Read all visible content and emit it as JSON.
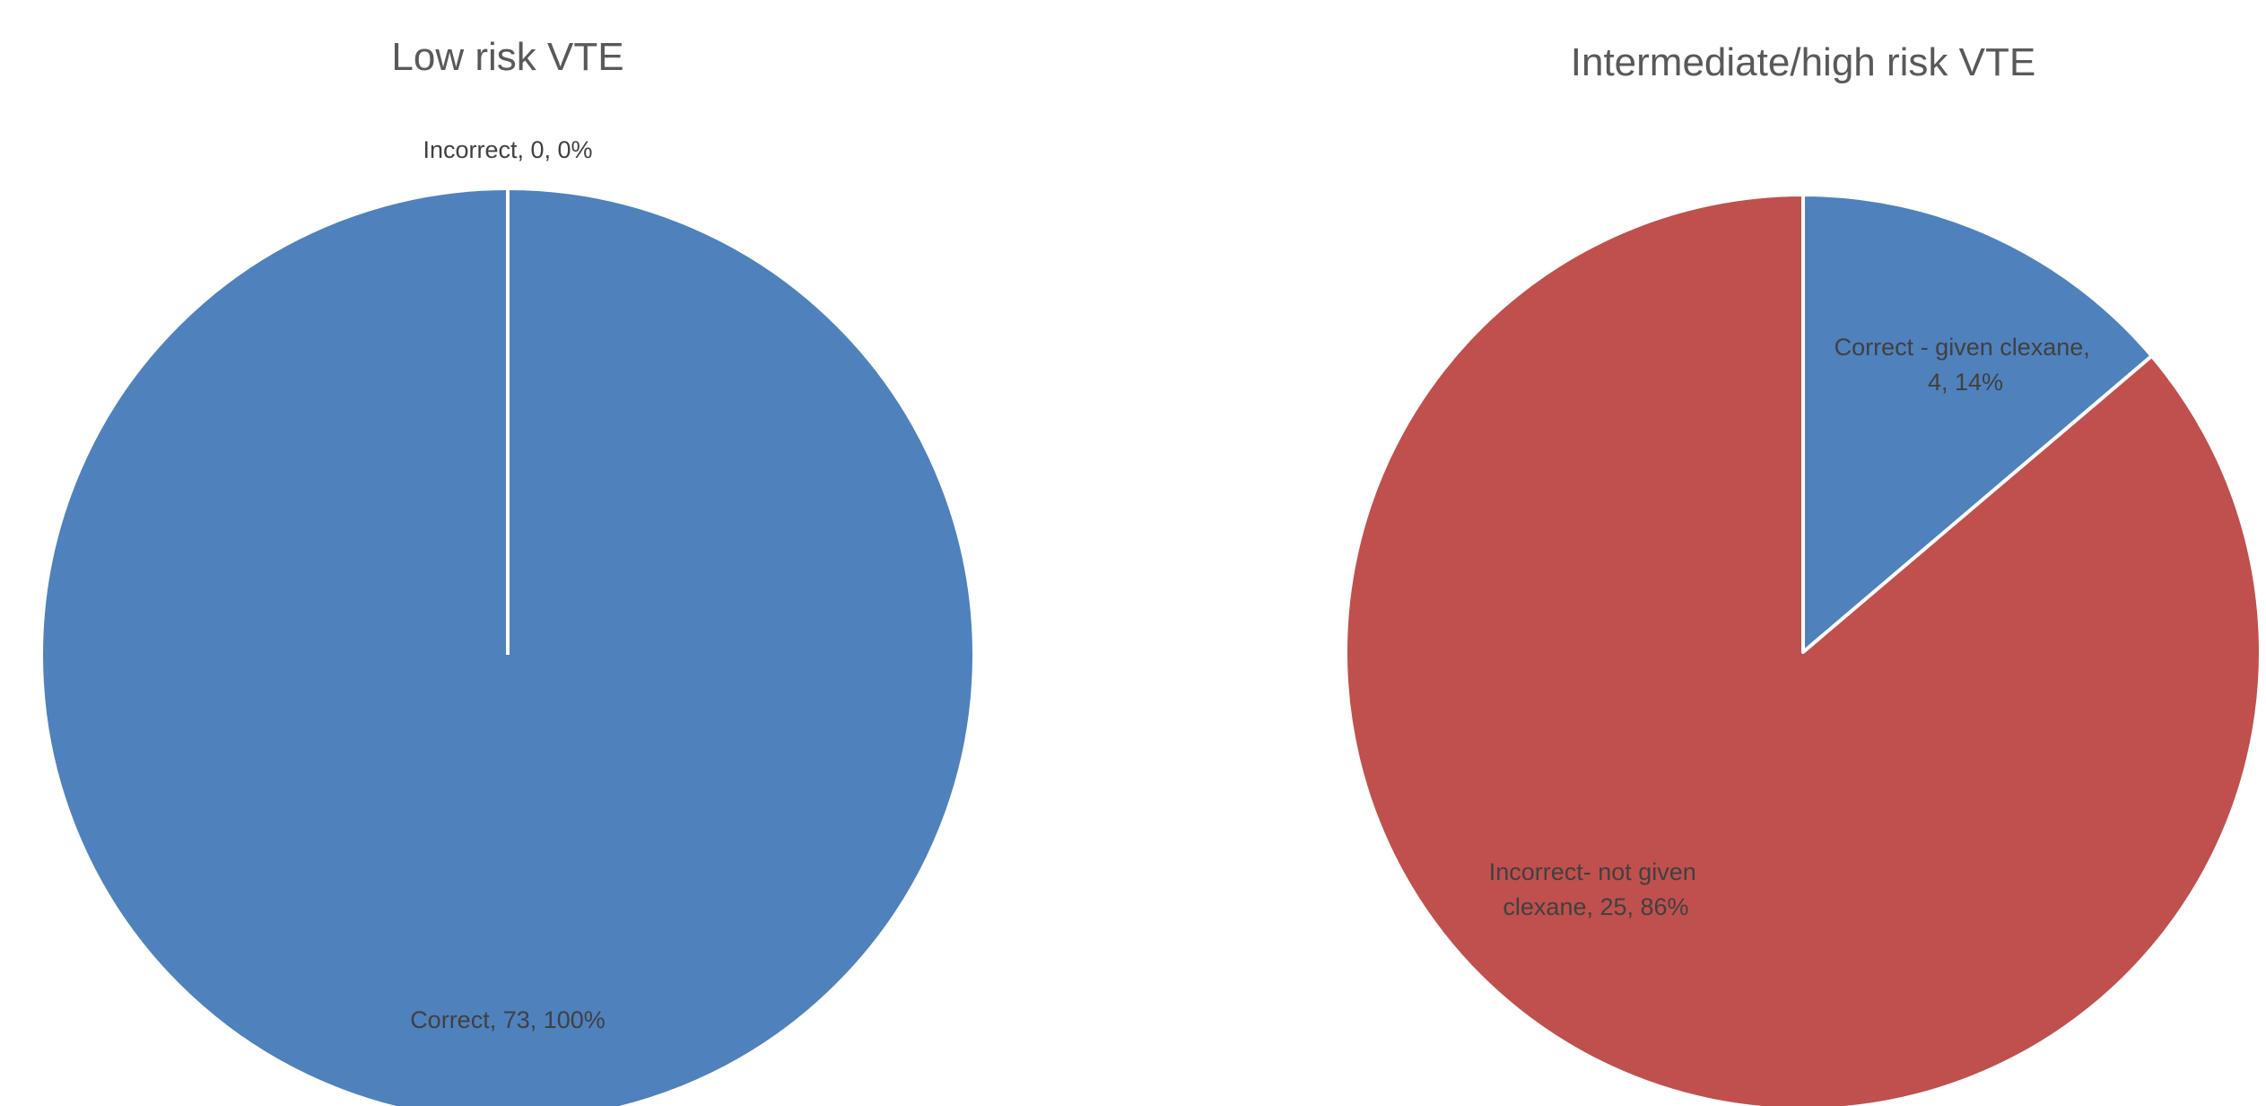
{
  "chart_data": [
    {
      "type": "pie",
      "title": "Low risk VTE",
      "slices": [
        {
          "label": "Incorrect",
          "value": 0,
          "percent": "0%",
          "label_text": "Incorrect, 0, 0%",
          "color": "#4f81bd"
        },
        {
          "label": "Correct",
          "value": 73,
          "percent": "100%",
          "label_text": "Correct, 73, 100%",
          "color": "#4f81bd"
        }
      ]
    },
    {
      "type": "pie",
      "title": "Intermediate/high risk VTE",
      "slices": [
        {
          "label": "Correct - given clexane",
          "value": 4,
          "percent": "14%",
          "label_text": "Correct - given clexane, 4, 14%",
          "color": "#4f81bd"
        },
        {
          "label": "Incorrect- not given clexane",
          "value": 25,
          "percent": "86%",
          "label_text": "Incorrect- not given clexane, 25, 86%",
          "color": "#c0504d"
        }
      ]
    }
  ]
}
